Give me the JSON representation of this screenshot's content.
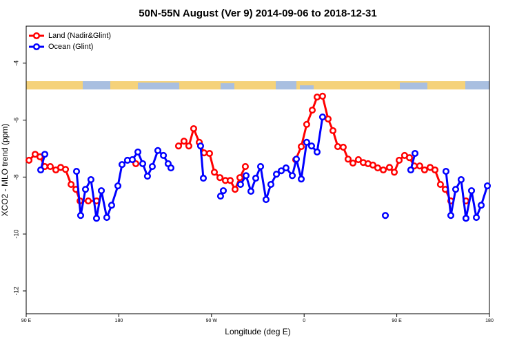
{
  "chart_data": {
    "type": "line",
    "title": "50N-55N August (Ver 9)   2014-09-06 to 2018-12-31",
    "x_label": "Longitude (deg E)",
    "y_label": "XCO2 - MLO trend (ppm)",
    "xlim": [
      90,
      540
    ],
    "ylim": [
      -12.8,
      -2.7
    ],
    "xticks": [
      {
        "value": 90,
        "label": "90 E"
      },
      {
        "value": 180,
        "label": "180"
      },
      {
        "value": 270,
        "label": "90 W"
      },
      {
        "value": 360,
        "label": "0"
      },
      {
        "value": 450,
        "label": "90 E"
      },
      {
        "value": 540,
        "label": "180"
      }
    ],
    "yticks": [
      -12,
      -10,
      -8,
      -6,
      -4
    ],
    "legend": "topleft",
    "series": [
      {
        "name": "Land (Nadir&Glint)",
        "color": "#ff0000",
        "x": [
          92.7,
          98.7,
          103.4,
          108.1,
          113.4,
          118.8,
          123.5,
          128.2,
          133.6,
          138.3,
          142.3,
          150.3,
          158.3,
          null,
          196.5,
          null,
          238.0,
          243.3,
          248.0,
          252.7,
          258.1,
          262.8,
          268.1,
          272.8,
          278.2,
          283.5,
          288.2,
          292.9,
          297.6,
          302.9,
          null,
          351.8,
          357.2,
          362.5,
          367.9,
          372.6,
          377.9,
          383.3,
          388.0,
          392.7,
          398.0,
          402.7,
          407.4,
          412.7,
          417.4,
          422.1,
          426.8,
          431.5,
          436.9,
          442.9,
          447.6,
          452.3,
          457.6,
          462.3,
          467.0,
          472.3,
          477.0,
          482.4,
          487.1,
          492.4,
          497.1,
          502.5,
          null,
          517.2
        ],
        "values": [
          -7.41,
          -7.2,
          -7.29,
          -7.63,
          -7.63,
          -7.75,
          -7.66,
          -7.73,
          -8.26,
          -8.43,
          -8.84,
          -8.84,
          -8.84,
          null,
          -7.53,
          null,
          -6.91,
          -6.74,
          -6.91,
          -6.3,
          -6.78,
          -7.15,
          -7.17,
          -7.83,
          -8.02,
          -8.12,
          -8.12,
          -8.43,
          -8.02,
          -7.63,
          null,
          -7.39,
          -6.93,
          -6.15,
          -5.65,
          -5.19,
          -5.16,
          -5.96,
          -6.37,
          -6.93,
          -6.95,
          -7.37,
          -7.51,
          -7.39,
          -7.49,
          -7.53,
          -7.58,
          -7.68,
          -7.75,
          -7.66,
          -7.83,
          -7.41,
          -7.24,
          -7.32,
          -7.61,
          -7.61,
          -7.75,
          -7.66,
          -7.75,
          -8.26,
          -8.43,
          -8.84,
          null,
          -8.84
        ]
      },
      {
        "name": "Ocean (Glint)",
        "color": "#0000ff",
        "x": [
          104.1,
          108.1,
          null,
          138.9,
          142.9,
          147.6,
          152.9,
          158.3,
          163.0,
          168.3,
          173.0,
          179.1,
          183.1,
          188.4,
          193.1,
          198.5,
          203.2,
          207.8,
          212.5,
          217.9,
          223.3,
          227.9,
          230.6,
          null,
          259.4,
          262.1,
          null,
          278.8,
          281.5,
          null,
          298.2,
          303.6,
          308.3,
          313.0,
          317.7,
          323.0,
          327.7,
          333.1,
          337.8,
          342.4,
          348.5,
          352.5,
          357.2,
          362.5,
          367.2,
          372.6,
          377.9,
          null,
          438.9,
          null,
          463.6,
          467.7,
          null,
          497.8,
          502.5,
          507.2,
          512.5,
          517.2,
          522.6,
          527.3,
          532.0,
          538.0
        ],
        "values": [
          -7.75,
          -7.2,
          null,
          -7.8,
          -9.35,
          -8.43,
          -8.09,
          -9.45,
          -8.48,
          -9.42,
          -8.99,
          -8.31,
          -7.56,
          -7.41,
          -7.39,
          -7.12,
          -7.53,
          -7.97,
          -7.63,
          -7.07,
          -7.24,
          -7.53,
          -7.68,
          null,
          -6.91,
          -8.04,
          null,
          -8.67,
          -8.48,
          null,
          -8.26,
          -7.95,
          -8.5,
          -8.04,
          -7.63,
          -8.79,
          -8.26,
          -7.9,
          -7.78,
          -7.68,
          -7.95,
          -7.37,
          -8.07,
          -6.78,
          -6.91,
          -7.12,
          -5.89,
          null,
          -9.35,
          null,
          -7.75,
          -7.17,
          null,
          -7.8,
          -9.35,
          -8.43,
          -8.09,
          -9.45,
          -8.48,
          -9.42,
          -8.99,
          -8.31
        ]
      }
    ]
  }
}
